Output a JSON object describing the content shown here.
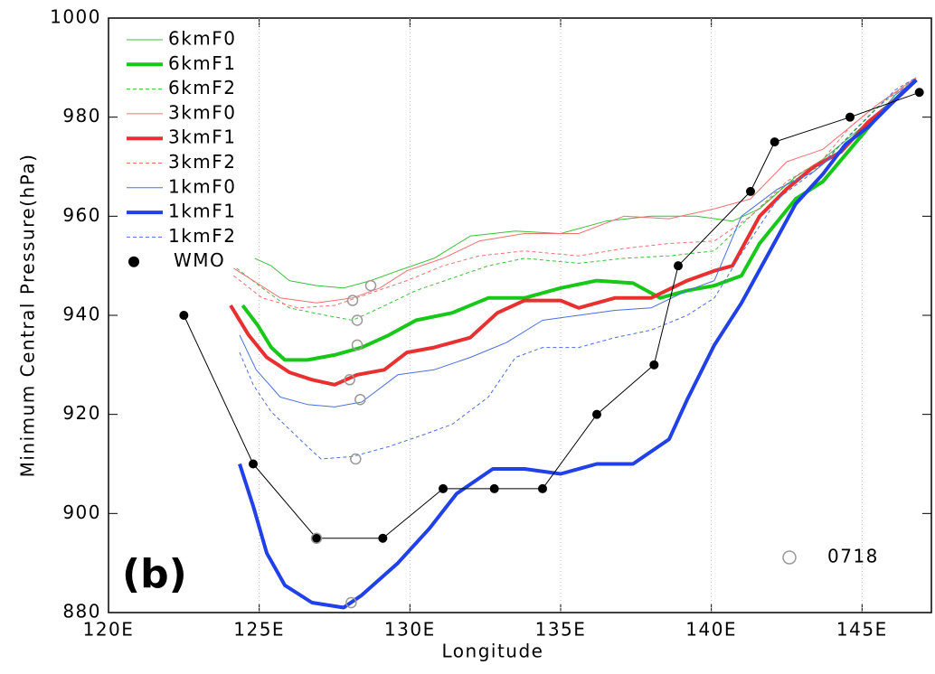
{
  "chart_data": {
    "type": "line",
    "annotation": "(b)",
    "x_label": "Longitude",
    "y_label": "Minimum Central Pressure(hPa)",
    "xlim": [
      120,
      147.3
    ],
    "ylim": [
      880,
      1000
    ],
    "xticks": [
      {
        "value": 120,
        "label": "120E"
      },
      {
        "value": 125,
        "label": "125E"
      },
      {
        "value": 130,
        "label": "130E"
      },
      {
        "value": 135,
        "label": "135E"
      },
      {
        "value": 140,
        "label": "140E"
      },
      {
        "value": 145,
        "label": "145E"
      }
    ],
    "yticks": [
      880,
      900,
      920,
      940,
      960,
      980,
      1000
    ],
    "xgrid": "dotted",
    "series": [
      {
        "name": "6kmF0",
        "color": "#3cbf3c",
        "linewidth": 1,
        "style": "solid",
        "x": [
          124.85,
          125.4,
          126,
          126.9,
          127.8,
          128.7,
          129.6,
          130.8,
          132,
          133.5,
          135,
          136.5,
          138,
          139.5,
          140.7,
          141.6,
          142.8,
          143.7,
          144.6,
          145.5,
          146.8
        ],
        "values": [
          951.5,
          950,
          947,
          946,
          945.5,
          947,
          949,
          951.5,
          956,
          957,
          956.5,
          959,
          960,
          960,
          959,
          961.5,
          968,
          971.5,
          976,
          980.5,
          988
        ]
      },
      {
        "name": "6kmF1",
        "color": "#18c818",
        "linewidth": 4,
        "style": "solid",
        "x": [
          124.45,
          124.95,
          125.4,
          125.85,
          126.6,
          127.5,
          128.4,
          129.3,
          130.2,
          131.4,
          132.6,
          133.8,
          135,
          136.2,
          137.4,
          138.3,
          139.2,
          140.1,
          141,
          141.6,
          142.8,
          143.7,
          144.6,
          145.5,
          146.8
        ],
        "values": [
          942,
          938,
          933.5,
          931,
          931,
          932,
          933.5,
          936,
          939,
          940.5,
          943.5,
          943.5,
          945.5,
          947,
          946.5,
          943.5,
          945,
          946,
          948,
          954.5,
          963.5,
          967,
          973.5,
          980,
          987.5
        ]
      },
      {
        "name": "6kmF2",
        "color": "#3cbf3c",
        "linewidth": 1,
        "style": "dashed",
        "x": [
          124.25,
          125.1,
          126,
          127.2,
          128.1,
          129,
          130.2,
          131.4,
          132.6,
          133.8,
          135.6,
          137.1,
          138.6,
          140.1,
          141.3,
          142.5,
          143.7,
          144.6,
          145.5,
          146.8
        ],
        "values": [
          949.5,
          945.5,
          941.5,
          940,
          939,
          941.5,
          945,
          947.5,
          950,
          951.5,
          950.5,
          951.5,
          952,
          953,
          960,
          966.5,
          970.5,
          976.5,
          982,
          988
        ]
      },
      {
        "name": "3kmF0",
        "color": "#f07070",
        "linewidth": 1,
        "style": "solid",
        "x": [
          124.15,
          124.8,
          125.7,
          126.9,
          128.1,
          129,
          129.9,
          131.1,
          132.3,
          133.8,
          135.6,
          137.1,
          138.6,
          140.1,
          141.3,
          142.5,
          143.7,
          144.6,
          145.5,
          146.8
        ],
        "values": [
          949.5,
          947,
          943.5,
          942.5,
          943.5,
          945.5,
          949,
          951.5,
          955,
          956.5,
          956.5,
          960,
          959.5,
          961.5,
          963.5,
          971,
          973.5,
          978,
          982.5,
          988
        ]
      },
      {
        "name": "3kmF1",
        "color": "#e83030",
        "linewidth": 4,
        "style": "solid",
        "x": [
          124.05,
          124.65,
          125.25,
          126,
          126.75,
          127.5,
          128.25,
          129.15,
          129.9,
          130.8,
          132,
          132.9,
          133.8,
          135,
          135.6,
          136.8,
          138,
          139.2,
          140.1,
          140.7,
          141.6,
          142.5,
          143.4,
          144.3,
          145.2,
          146.1,
          146.8
        ],
        "values": [
          942,
          936,
          931.5,
          928.5,
          927,
          926,
          928,
          929,
          932.5,
          933.5,
          935.5,
          940.5,
          943,
          943,
          941.5,
          943.5,
          943.5,
          947,
          949,
          950,
          960,
          965.5,
          970,
          973,
          979,
          983.5,
          987.5
        ]
      },
      {
        "name": "3kmF2",
        "color": "#f07070",
        "linewidth": 1,
        "style": "dashed",
        "x": [
          124.15,
          125.1,
          126.3,
          127.5,
          128.7,
          129.9,
          131.1,
          132.3,
          133.8,
          135.6,
          137.1,
          138.6,
          140.1,
          141.3,
          142.5,
          143.7,
          144.6,
          145.5,
          146.8
        ],
        "values": [
          948,
          943.5,
          941.5,
          942,
          944.5,
          947,
          950,
          952,
          953,
          952,
          953.5,
          954.5,
          955,
          960,
          967,
          971.5,
          978,
          982.5,
          987.5
        ]
      },
      {
        "name": "1kmF0",
        "color": "#4a6ee0",
        "linewidth": 1,
        "style": "solid",
        "x": [
          124.35,
          124.9,
          125.7,
          126.6,
          127.5,
          128.4,
          129.6,
          130.8,
          132,
          133.2,
          134.4,
          135.6,
          136.8,
          138,
          139.2,
          140.1,
          141,
          142.2,
          143.4,
          144.3,
          145.2,
          146.1,
          146.8
        ],
        "values": [
          936,
          929,
          923.5,
          922,
          921.5,
          922.5,
          928,
          929,
          931.5,
          934.5,
          939,
          940,
          941,
          941.5,
          945,
          947,
          960,
          965.5,
          969,
          973.5,
          978,
          984.5,
          987.5
        ]
      },
      {
        "name": "1kmF1",
        "color": "#2040e8",
        "linewidth": 4,
        "style": "solid",
        "x": [
          124.35,
          124.8,
          125.25,
          125.85,
          126.75,
          127.8,
          128.4,
          129.6,
          130.65,
          131.55,
          132.75,
          133.8,
          135,
          136.2,
          137.4,
          138.6,
          139.2,
          140.1,
          141,
          141.9,
          142.8,
          143.7,
          144.45,
          145.2,
          146.1,
          146.8
        ],
        "values": [
          910,
          901.5,
          892,
          885.5,
          882,
          881,
          883.5,
          890,
          897,
          904,
          909,
          909,
          908,
          910,
          910,
          915,
          923,
          934,
          942.5,
          952.5,
          962.5,
          968.5,
          974.5,
          978,
          983.5,
          987.5
        ]
      },
      {
        "name": "1kmF2",
        "color": "#4a6ee0",
        "linewidth": 1,
        "style": "dashed",
        "x": [
          124.35,
          124.8,
          125.4,
          126,
          126.6,
          127.05,
          128.1,
          129.3,
          130.5,
          131.4,
          132.6,
          133.5,
          134.4,
          135.6,
          136.8,
          138,
          139.2,
          140.1,
          141,
          142.2,
          143.4,
          144.3,
          145.2,
          146.1,
          146.8
        ],
        "values": [
          932.5,
          926,
          920.5,
          917,
          913.5,
          911,
          911.5,
          913.5,
          916,
          918,
          923.5,
          931.5,
          933.5,
          933.5,
          935.5,
          937,
          940,
          943.5,
          952.5,
          963.5,
          969,
          974.5,
          980,
          985.5,
          988
        ]
      },
      {
        "name": "WMO",
        "color": "#000000",
        "linewidth": 1,
        "style": "solid",
        "marker": "dot",
        "x": [
          122.5,
          124.8,
          126.9,
          129.1,
          131.1,
          132.8,
          134.4,
          136.2,
          138.1,
          138.9,
          141.3,
          142.1,
          144.6,
          146.9
        ],
        "values": [
          940,
          910,
          895,
          895,
          905,
          905,
          905,
          920,
          930,
          950,
          965,
          975,
          980,
          985
        ]
      },
      {
        "name": "0718",
        "color": "#999999",
        "marker": "circle",
        "legend_loc": "lower right",
        "x": [
          128.7,
          128.1,
          128.25,
          128.25,
          128,
          128.35,
          128.2,
          128.05,
          126.9
        ],
        "values": [
          946,
          943,
          939,
          934,
          927,
          923,
          911,
          882,
          895
        ]
      }
    ]
  }
}
